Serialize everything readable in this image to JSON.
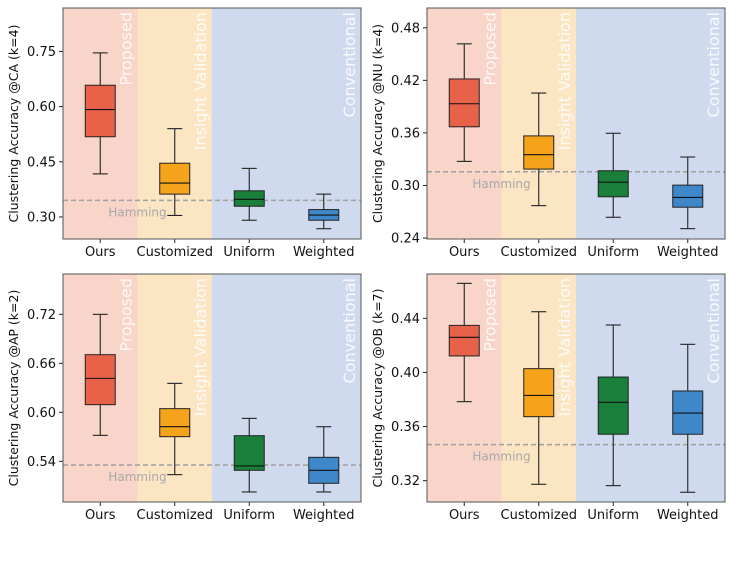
{
  "region_colors": {
    "Proposed": "#f8d5c8",
    "Insight Validation": "#fbe5c3",
    "Conventional": "#cfdaee"
  },
  "box_colors": [
    "#e8624a",
    "#f5a31a",
    "#1a7f3b",
    "#3e87c9"
  ],
  "chart_data": [
    {
      "type": "box",
      "ylabel": "Clustering Accuracy @CA (k=4)",
      "categories": [
        "Ours",
        "Customized",
        "Uniform",
        "Weighted"
      ],
      "regions": [
        {
          "label": "Proposed",
          "from": -0.5,
          "to": 0.5
        },
        {
          "label": "Insight Validation",
          "from": 0.5,
          "to": 1.5
        },
        {
          "label": "Conventional",
          "from": 1.5,
          "to": 3.5
        }
      ],
      "boxes": [
        {
          "whisker_low": 0.417,
          "q1": 0.518,
          "median": 0.592,
          "q3": 0.658,
          "whisker_high": 0.746
        },
        {
          "whisker_low": 0.304,
          "q1": 0.362,
          "median": 0.392,
          "q3": 0.446,
          "whisker_high": 0.54
        },
        {
          "whisker_low": 0.291,
          "q1": 0.329,
          "median": 0.348,
          "q3": 0.371,
          "whisker_high": 0.432
        },
        {
          "whisker_low": 0.268,
          "q1": 0.291,
          "median": 0.305,
          "q3": 0.32,
          "whisker_high": 0.362
        }
      ],
      "reference": {
        "label": "Hamming",
        "value": 0.345
      },
      "yticks": [
        "0.30",
        "0.45",
        "0.60",
        "0.75"
      ],
      "ylim": [
        0.24,
        0.868
      ]
    },
    {
      "type": "box",
      "ylabel": "Clustering Accuracy @NU (k=4)",
      "categories": [
        "Ours",
        "Customized",
        "Uniform",
        "Weighted"
      ],
      "regions": [
        {
          "label": "Proposed",
          "from": -0.5,
          "to": 0.5
        },
        {
          "label": "Insight Validation",
          "from": 0.5,
          "to": 1.5
        },
        {
          "label": "Conventional",
          "from": 1.5,
          "to": 3.5
        }
      ],
      "boxes": [
        {
          "whisker_low": 0.3275,
          "q1": 0.367,
          "median": 0.3933,
          "q3": 0.4216,
          "whisker_high": 0.4617
        },
        {
          "whisker_low": 0.277,
          "q1": 0.3187,
          "median": 0.3352,
          "q3": 0.3566,
          "whisker_high": 0.4055
        },
        {
          "whisker_low": 0.2637,
          "q1": 0.2871,
          "median": 0.3038,
          "q3": 0.3168,
          "whisker_high": 0.3596
        },
        {
          "whisker_low": 0.2507,
          "q1": 0.2752,
          "median": 0.2863,
          "q3": 0.3004,
          "whisker_high": 0.3325
        }
      ],
      "reference": {
        "label": "Hamming",
        "value": 0.3156
      },
      "yticks": [
        "0.24",
        "0.30",
        "0.36",
        "0.42",
        "0.48"
      ],
      "ylim": [
        0.2389,
        0.5026
      ]
    },
    {
      "type": "box",
      "ylabel": "Clustering Accuracy @AP (k=2)",
      "categories": [
        "Ours",
        "Customized",
        "Uniform",
        "Weighted"
      ],
      "regions": [
        {
          "label": "Proposed",
          "from": -0.5,
          "to": 0.5
        },
        {
          "label": "Insight Validation",
          "from": 0.5,
          "to": 1.5
        },
        {
          "label": "Conventional",
          "from": 1.5,
          "to": 3.5
        }
      ],
      "boxes": [
        {
          "whisker_low": 0.5718,
          "q1": 0.6094,
          "median": 0.6416,
          "q3": 0.6706,
          "whisker_high": 0.72
        },
        {
          "whisker_low": 0.5237,
          "q1": 0.5702,
          "median": 0.5824,
          "q3": 0.6045,
          "whisker_high": 0.6355
        },
        {
          "whisker_low": 0.5025,
          "q1": 0.529,
          "median": 0.5343,
          "q3": 0.5714,
          "whisker_high": 0.5926
        },
        {
          "whisker_low": 0.5025,
          "q1": 0.5131,
          "median": 0.529,
          "q3": 0.5449,
          "whisker_high": 0.5824
        }
      ],
      "reference": {
        "label": "Hamming",
        "value": 0.5355
      },
      "yticks": [
        "0.54",
        "0.60",
        "0.66",
        "0.72"
      ],
      "ylim": [
        0.4902,
        0.7694
      ]
    },
    {
      "type": "box",
      "ylabel": "Clustering Accuracy @OB (k=7)",
      "categories": [
        "Ours",
        "Customized",
        "Uniform",
        "Weighted"
      ],
      "regions": [
        {
          "label": "Proposed",
          "from": -0.5,
          "to": 0.5
        },
        {
          "label": "Insight Validation",
          "from": 0.5,
          "to": 1.5
        },
        {
          "label": "Conventional",
          "from": 1.5,
          "to": 3.5
        }
      ],
      "boxes": [
        {
          "whisker_low": 0.3784,
          "q1": 0.4122,
          "median": 0.426,
          "q3": 0.4348,
          "whisker_high": 0.4659
        },
        {
          "whisker_low": 0.3173,
          "q1": 0.3673,
          "median": 0.383,
          "q3": 0.4028,
          "whisker_high": 0.4449
        },
        {
          "whisker_low": 0.3163,
          "q1": 0.3543,
          "median": 0.3779,
          "q3": 0.3966,
          "whisker_high": 0.4351
        },
        {
          "whisker_low": 0.3114,
          "q1": 0.3543,
          "median": 0.37,
          "q3": 0.3863,
          "whisker_high": 0.4208
        }
      ],
      "reference": {
        "label": "Hamming",
        "value": 0.3466
      },
      "yticks": [
        "0.32",
        "0.36",
        "0.40",
        "0.44"
      ],
      "ylim": [
        0.3042,
        0.4728
      ]
    }
  ]
}
